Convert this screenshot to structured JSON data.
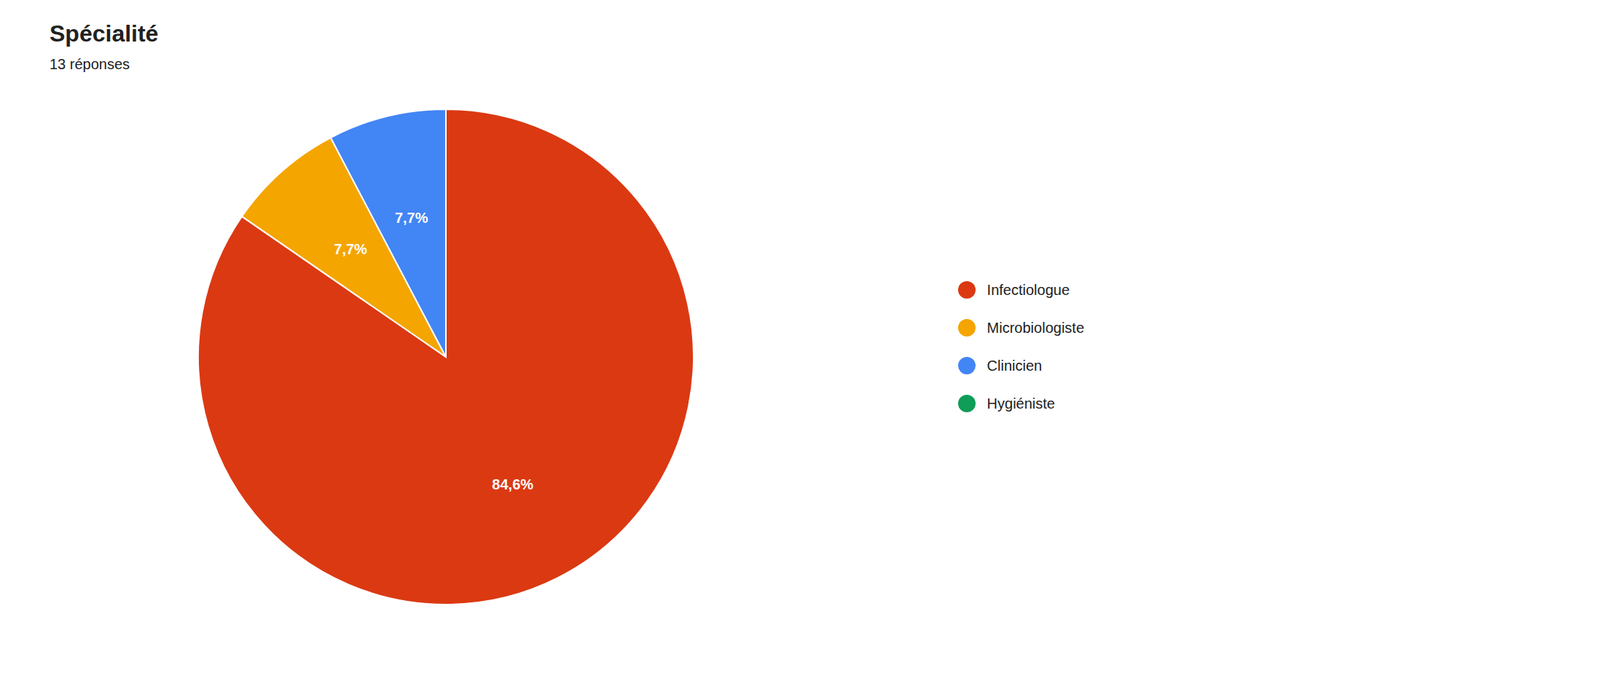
{
  "chart_data": {
    "type": "pie",
    "title": "Spécialité",
    "subtitle": "13 réponses",
    "categories": [
      "Infectiologue",
      "Microbiologiste",
      "Clinicien",
      "Hygiéniste"
    ],
    "values": [
      84.6,
      7.7,
      7.7,
      0.0
    ],
    "value_labels": [
      "84,6%",
      "7,7%",
      "7,7%",
      null
    ],
    "colors": [
      "#DB3912",
      "#F4A500",
      "#4285F4",
      "#0F9D58"
    ],
    "legend": "right",
    "data_labels": true
  }
}
